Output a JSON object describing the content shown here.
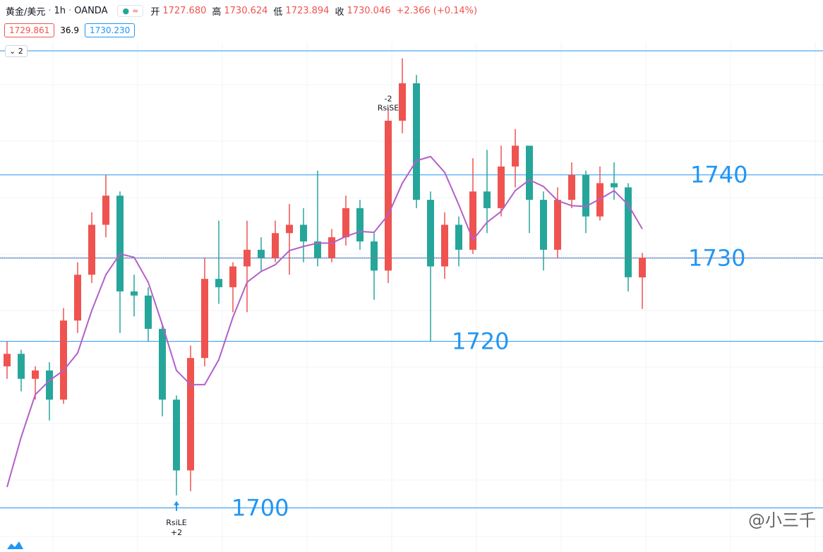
{
  "header": {
    "symbol": "黄金/美元",
    "interval": "1h",
    "source": "OANDA",
    "ohlc": [
      {
        "label": "开",
        "value": "1727.680"
      },
      {
        "label": "高",
        "value": "1730.624"
      },
      {
        "label": "低",
        "value": "1723.894"
      },
      {
        "label": "收",
        "value": "1730.046"
      }
    ],
    "change": "+2.366 (+0.14%)",
    "bid": "1729.861",
    "spread": "36.9",
    "ask": "1730.230",
    "indicator_count": "2"
  },
  "chart_data": {
    "type": "candlestick",
    "open": [
      1717,
      1718.5,
      1715.5,
      1716.5,
      1713,
      1722.5,
      1728,
      1734,
      1737.5,
      1726,
      1725.5,
      1721.5,
      1713,
      1704.5,
      1718,
      1727.5,
      1726.5,
      1729,
      1731,
      1730,
      1733,
      1734,
      1732,
      1730,
      1732.5,
      1736,
      1732,
      1728.5,
      1746.5,
      1751,
      1737,
      1729,
      1734,
      1731,
      1738,
      1736,
      1741,
      1743.5,
      1737,
      1731,
      1737,
      1740,
      1735,
      1739,
      1738.5,
      1727.68
    ],
    "high": [
      1720,
      1719,
      1717,
      1717.5,
      1724,
      1729.5,
      1735.5,
      1740,
      1738,
      1728,
      1726.5,
      1722,
      1713.5,
      1719.5,
      1730,
      1734.5,
      1729.5,
      1734.5,
      1732.5,
      1734.5,
      1736.5,
      1736,
      1740.5,
      1733.5,
      1737.5,
      1737,
      1733,
      1748,
      1754,
      1752,
      1738,
      1735.5,
      1735,
      1742,
      1743,
      1743.5,
      1745.5,
      1743.5,
      1738,
      1738.5,
      1741.5,
      1740.5,
      1741,
      1741.5,
      1739,
      1730.624
    ],
    "low": [
      1715.5,
      1714,
      1713,
      1710.5,
      1712.5,
      1721,
      1727,
      1732.5,
      1721,
      1723,
      1720,
      1711,
      1701.5,
      1702,
      1717,
      1724.5,
      1723.5,
      1723.5,
      1728.5,
      1729.5,
      1728,
      1729.5,
      1729,
      1729.5,
      1731.5,
      1731,
      1725,
      1727,
      1745,
      1736,
      1720,
      1727.5,
      1729,
      1730.5,
      1733,
      1735,
      1738.5,
      1733,
      1728.5,
      1730,
      1736,
      1733,
      1734.5,
      1737,
      1726,
      1723.894
    ],
    "close": [
      1718.5,
      1715.5,
      1716.5,
      1713,
      1722.5,
      1728,
      1734,
      1737.5,
      1726,
      1725.5,
      1721.5,
      1713,
      1704.5,
      1718,
      1727.5,
      1726.5,
      1729,
      1731,
      1730,
      1733,
      1734,
      1732,
      1730,
      1732.5,
      1736,
      1732,
      1728.5,
      1746.5,
      1751,
      1737,
      1729,
      1734,
      1731,
      1738,
      1736,
      1741,
      1743.5,
      1737,
      1731,
      1737,
      1740,
      1735,
      1739,
      1738.5,
      1727.7,
      1730.046
    ],
    "up_color": "#ef5350",
    "down_color": "#26a69a",
    "ylim": [
      1694.7,
      1761
    ],
    "moving_average": {
      "color": "#b360c8",
      "values": [
        1702.5,
        1708.5,
        1713.6,
        1715.3,
        1716.5,
        1718.6,
        1723.7,
        1728,
        1730.5,
        1730.1,
        1727.1,
        1722,
        1716.5,
        1714.8,
        1714.8,
        1717.8,
        1722.9,
        1727.1,
        1728.4,
        1729.2,
        1730.9,
        1731.4,
        1731.8,
        1731.8,
        1732.6,
        1733.2,
        1733.1,
        1735.2,
        1739,
        1741.7,
        1742.2,
        1740.3,
        1736.4,
        1732.2,
        1734.3,
        1735.6,
        1738.1,
        1739.4,
        1738.6,
        1736.9,
        1736.3,
        1736.2,
        1737.1,
        1738.1,
        1736.4,
        1733.5
      ]
    },
    "levels": [
      1740,
      1730,
      1720,
      1700
    ],
    "level_color": "#2196f3",
    "signals": [
      {
        "label": "RsiLE",
        "qty": "+2"
      },
      {
        "label": "RsiSE",
        "qty": "-2"
      }
    ]
  },
  "watermark": "@小三千"
}
